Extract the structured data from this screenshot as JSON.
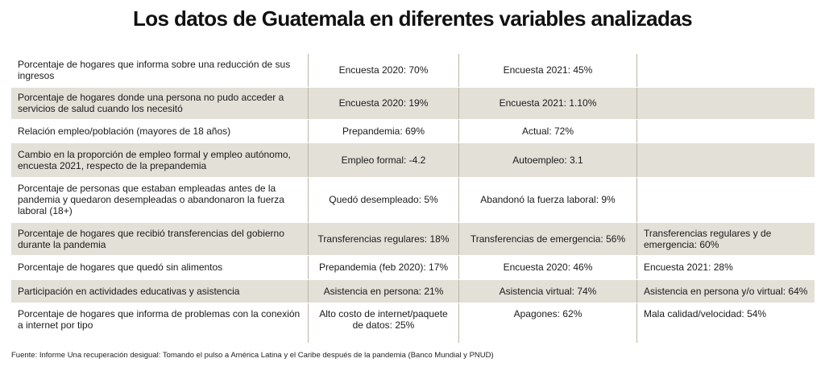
{
  "title": "Los datos de Guatemala en diferentes variables analizadas",
  "rows": [
    {
      "label": "Porcentaje de hogares que informa sobre una reducción de sus ingresos",
      "c1": "Encuesta 2020: 70%",
      "c2": "Encuesta 2021: 45%",
      "c3": ""
    },
    {
      "label": "Porcentaje de hogares donde una persona no pudo acceder a servicios de salud cuando los necesitó",
      "c1": "Encuesta 2020: 19%",
      "c2": "Encuesta 2021: 1.10%",
      "c3": ""
    },
    {
      "label": "Relación empleo/población (mayores de 18 años)",
      "c1": "Prepandemia: 69%",
      "c2": "Actual: 72%",
      "c3": ""
    },
    {
      "label": "Cambio en la proporción de empleo formal y empleo autónomo, encuesta 2021, respecto de la prepandemia",
      "c1": "Empleo formal: -4.2",
      "c2": "Autoempleo: 3.1",
      "c3": ""
    },
    {
      "label": "Porcentaje de personas que estaban empleadas antes de la pandemia y quedaron desempleadas o abandonaron la fuerza laboral (18+)",
      "c1": "Quedó desempleado: 5%",
      "c2": "Abandonó la fuerza laboral: 9%",
      "c3": ""
    },
    {
      "label": "Porcentaje de hogares que recibió transferencias del gobierno durante la pandemia",
      "c1": "Transferencias regulares: 18%",
      "c2": "Transferencias de emergencia: 56%",
      "c3": "Transferencias regulares y de emergencia: 60%"
    },
    {
      "label": "Porcentaje de hogares que quedó sin alimentos",
      "c1": "Prepandemia (feb 2020): 17%",
      "c2": "Encuesta 2020: 46%",
      "c3": "Encuesta 2021: 28%"
    },
    {
      "label": "Participación en actividades educativas y asistencia",
      "c1": "Asistencia en persona: 21%",
      "c2": "Asistencia virtual: 74%",
      "c3": "Asistencia en persona y/o virtual: 64%"
    },
    {
      "label": "Porcentaje de hogares que informa de problemas con la conexión a internet por tipo",
      "c1": "Alto costo de internet/paquete de datos: 25%",
      "c2": "Apagones: 62%",
      "c3": "Mala calidad/velocidad: 54%"
    }
  ],
  "source": "Fuente: Informe Una recuperación desigual: Tomando el pulso a América Latina y el Caribe después de la pandemia (Banco Mundial y PNUD)"
}
